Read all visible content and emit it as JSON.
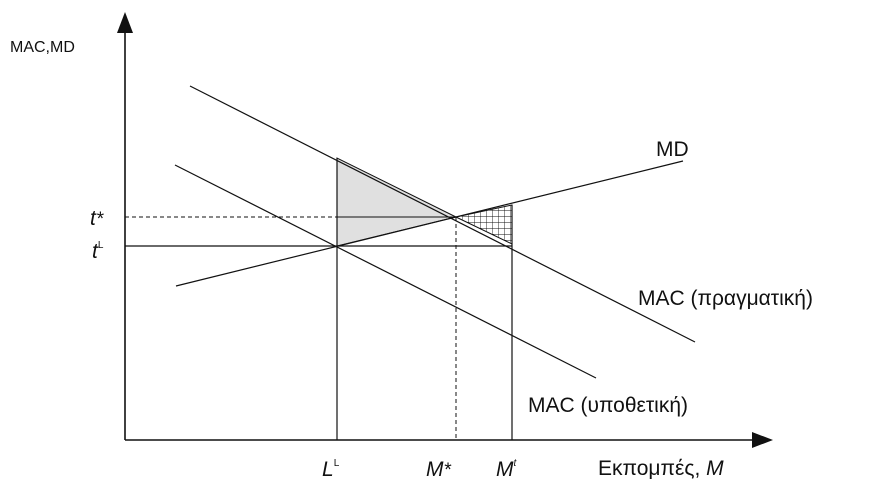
{
  "diagram": {
    "y_axis_label": "MAC,MD",
    "x_axis_label_text": "Εκπομπές, ",
    "x_axis_label_var": "M",
    "curves": {
      "md": "MD",
      "mac_actual": "MAC (πραγματική)",
      "mac_hypothetical": "MAC (υποθετική)"
    },
    "y_ticks": {
      "t_star": {
        "base": "t",
        "mark": "*"
      },
      "t_L": {
        "base": "t",
        "mark": "L"
      }
    },
    "x_ticks": {
      "L_L": {
        "base": "L",
        "mark": "L"
      },
      "M_star": {
        "base": "M",
        "mark": "*"
      },
      "M_t": {
        "base": "M",
        "mark": "t"
      }
    },
    "colors": {
      "line": "#111111",
      "shaded_triangle": "#e0e0e0"
    }
  }
}
